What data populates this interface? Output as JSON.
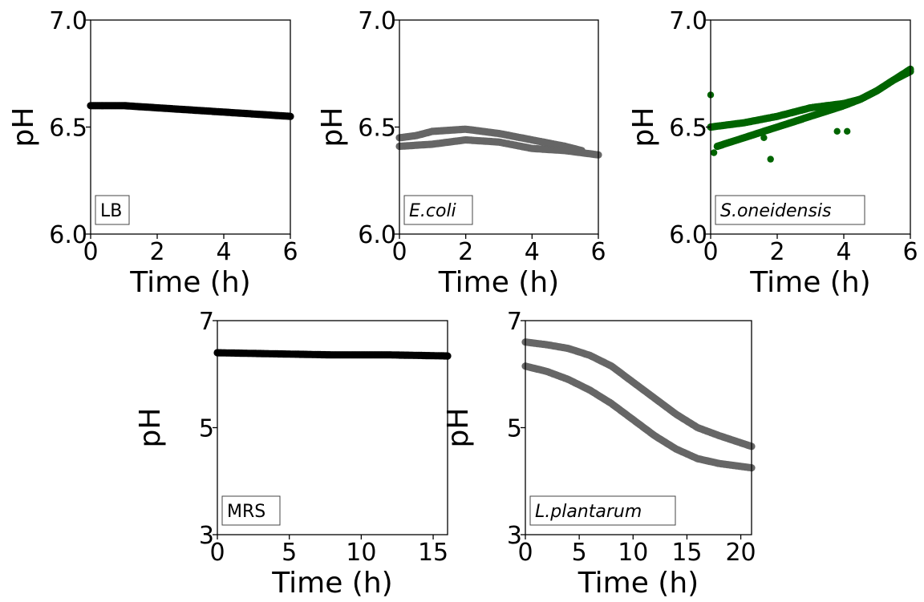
{
  "figure": {
    "background": "#ffffff"
  },
  "chart_data": [
    {
      "type": "scatter",
      "label": "LB",
      "label_italic": false,
      "color": "#000000",
      "xlabel": "Time (h)",
      "ylabel": "pH",
      "xlim": [
        0,
        6
      ],
      "ylim": [
        6.0,
        7.0
      ],
      "xticks": [
        "0",
        "2",
        "4",
        "6"
      ],
      "yticks": [
        "6.0",
        "6.5",
        "7.0"
      ],
      "grid": false,
      "legend": "none",
      "series": [
        {
          "x": [
            0,
            1,
            2,
            3,
            4,
            5,
            6
          ],
          "y": [
            6.6,
            6.6,
            6.59,
            6.58,
            6.57,
            6.56,
            6.55
          ]
        }
      ]
    },
    {
      "type": "scatter",
      "label": "E.coli",
      "label_italic": true,
      "color": "#666666",
      "xlabel": "Time (h)",
      "ylabel": "pH",
      "xlim": [
        0,
        6
      ],
      "ylim": [
        6.0,
        7.0
      ],
      "xticks": [
        "0",
        "2",
        "4",
        "6"
      ],
      "yticks": [
        "6.0",
        "6.5",
        "7.0"
      ],
      "grid": false,
      "legend": "none",
      "series": [
        {
          "x": [
            0,
            0.5,
            1,
            2,
            3,
            4,
            5,
            5.5
          ],
          "y": [
            6.45,
            6.46,
            6.48,
            6.49,
            6.47,
            6.44,
            6.41,
            6.39
          ]
        },
        {
          "x": [
            0,
            1,
            2,
            3,
            4,
            5,
            6
          ],
          "y": [
            6.41,
            6.42,
            6.44,
            6.43,
            6.4,
            6.39,
            6.37
          ]
        }
      ]
    },
    {
      "type": "scatter",
      "label": "S.oneidensis",
      "label_italic": true,
      "color": "#006400",
      "xlabel": "Time (h)",
      "ylabel": "pH",
      "xlim": [
        0,
        6
      ],
      "ylim": [
        6.0,
        7.0
      ],
      "xticks": [
        "0",
        "2",
        "4",
        "6"
      ],
      "yticks": [
        "6.0",
        "6.5",
        "7.0"
      ],
      "grid": false,
      "legend": "none",
      "series": [
        {
          "x": [
            0,
            1,
            2,
            3,
            4,
            4.5,
            5,
            5.5,
            6
          ],
          "y": [
            6.5,
            6.52,
            6.55,
            6.59,
            6.61,
            6.63,
            6.67,
            6.72,
            6.77
          ]
        },
        {
          "x": [
            0.2,
            1,
            2,
            3,
            4,
            4.5,
            5,
            5.5,
            6
          ],
          "y": [
            6.41,
            6.45,
            6.5,
            6.55,
            6.6,
            6.63,
            6.67,
            6.72,
            6.76
          ]
        }
      ],
      "outliers": {
        "x": [
          0,
          0.1,
          1.6,
          1.8,
          3.8,
          4.1
        ],
        "y": [
          6.65,
          6.38,
          6.45,
          6.35,
          6.48,
          6.48
        ]
      }
    },
    {
      "type": "scatter",
      "label": "MRS",
      "label_italic": false,
      "color": "#000000",
      "xlabel": "Time (h)",
      "ylabel": "pH",
      "xlim": [
        0,
        16
      ],
      "ylim": [
        3,
        7
      ],
      "xticks": [
        "0",
        "5",
        "10",
        "15"
      ],
      "yticks": [
        "3",
        "5",
        "7"
      ],
      "grid": false,
      "legend": "none",
      "series": [
        {
          "x": [
            0,
            4,
            8,
            12,
            16
          ],
          "y": [
            6.4,
            6.38,
            6.36,
            6.36,
            6.34
          ]
        }
      ]
    },
    {
      "type": "scatter",
      "label": "L.plantarum",
      "label_italic": true,
      "color": "#666666",
      "xlabel": "Time (h)",
      "ylabel": "pH",
      "xlim": [
        0,
        21
      ],
      "ylim": [
        3,
        7
      ],
      "xticks": [
        "0",
        "5",
        "10",
        "15",
        "20"
      ],
      "yticks": [
        "3",
        "5",
        "7"
      ],
      "grid": false,
      "legend": "none",
      "series": [
        {
          "x": [
            0,
            2,
            4,
            6,
            8,
            10,
            12,
            14,
            16,
            18,
            21
          ],
          "y": [
            6.6,
            6.55,
            6.48,
            6.35,
            6.15,
            5.85,
            5.55,
            5.25,
            5.0,
            4.85,
            4.65
          ]
        },
        {
          "x": [
            0,
            2,
            4,
            6,
            8,
            10,
            12,
            14,
            16,
            18,
            21
          ],
          "y": [
            6.15,
            6.05,
            5.9,
            5.7,
            5.45,
            5.15,
            4.85,
            4.6,
            4.42,
            4.33,
            4.25
          ]
        }
      ]
    }
  ]
}
